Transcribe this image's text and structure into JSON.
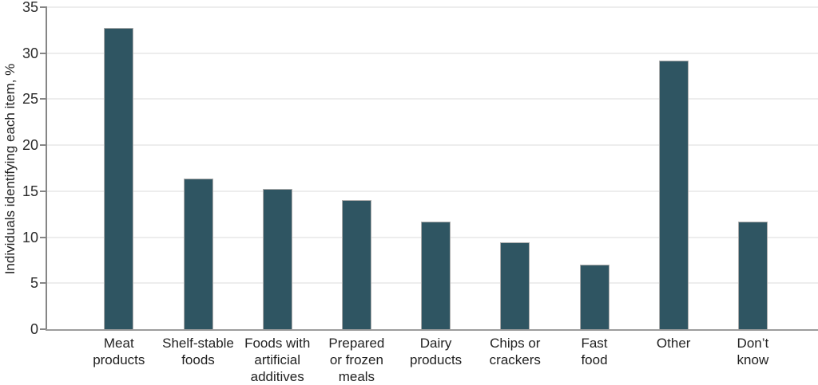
{
  "chart_data": {
    "type": "bar",
    "title": "",
    "xlabel": "",
    "ylabel": "Individuals identifying each item, %",
    "ylim": [
      0,
      35
    ],
    "yticks": [
      0,
      5,
      10,
      15,
      20,
      25,
      30,
      35
    ],
    "grid": "horizontal gridlines at every 5 units",
    "legend_position": "none",
    "categories": [
      "Meat\nproducts",
      "Shelf-stable\nfoods",
      "Foods with\nartificial\nadditives",
      "Prepared\nor frozen\nmeals",
      "Dairy\nproducts",
      "Chips or\ncrackers",
      "Fast\nfood",
      "Other",
      "Don’t\nknow"
    ],
    "values": [
      32.7,
      16.4,
      15.2,
      14.0,
      11.7,
      9.4,
      7.0,
      29.2,
      11.7
    ],
    "colors": {
      "bar_fill": "#2f5562",
      "bar_border": "#adadad",
      "gridline": "#ededed",
      "axis_line": "#868686",
      "baseline": "#9c9c9c",
      "text": "#222222"
    }
  }
}
